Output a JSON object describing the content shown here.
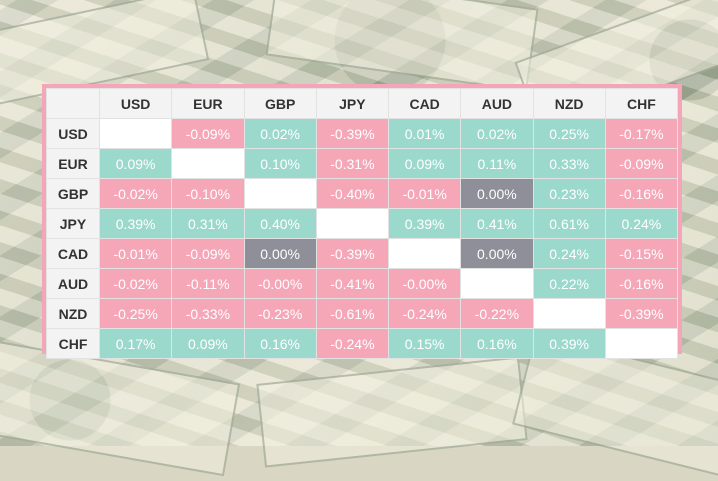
{
  "colors": {
    "positive": "#9ad9cc",
    "negative": "#f6a7b7",
    "zero": "#8f8f99",
    "frame": "#f4a5b7"
  },
  "table": {
    "columns": [
      "USD",
      "EUR",
      "GBP",
      "JPY",
      "CAD",
      "AUD",
      "NZD",
      "CHF"
    ],
    "rows": [
      {
        "label": "USD",
        "cells": [
          {
            "value": "",
            "type": "self"
          },
          {
            "value": "-0.09%",
            "type": "neg"
          },
          {
            "value": "0.02%",
            "type": "pos"
          },
          {
            "value": "-0.39%",
            "type": "neg"
          },
          {
            "value": "0.01%",
            "type": "pos"
          },
          {
            "value": "0.02%",
            "type": "pos"
          },
          {
            "value": "0.25%",
            "type": "pos"
          },
          {
            "value": "-0.17%",
            "type": "neg"
          }
        ]
      },
      {
        "label": "EUR",
        "cells": [
          {
            "value": "0.09%",
            "type": "pos"
          },
          {
            "value": "",
            "type": "self"
          },
          {
            "value": "0.10%",
            "type": "pos"
          },
          {
            "value": "-0.31%",
            "type": "neg"
          },
          {
            "value": "0.09%",
            "type": "pos"
          },
          {
            "value": "0.11%",
            "type": "pos"
          },
          {
            "value": "0.33%",
            "type": "pos"
          },
          {
            "value": "-0.09%",
            "type": "neg"
          }
        ]
      },
      {
        "label": "GBP",
        "cells": [
          {
            "value": "-0.02%",
            "type": "neg"
          },
          {
            "value": "-0.10%",
            "type": "neg"
          },
          {
            "value": "",
            "type": "self"
          },
          {
            "value": "-0.40%",
            "type": "neg"
          },
          {
            "value": "-0.01%",
            "type": "neg"
          },
          {
            "value": "0.00%",
            "type": "zero"
          },
          {
            "value": "0.23%",
            "type": "pos"
          },
          {
            "value": "-0.16%",
            "type": "neg"
          }
        ]
      },
      {
        "label": "JPY",
        "cells": [
          {
            "value": "0.39%",
            "type": "pos"
          },
          {
            "value": "0.31%",
            "type": "pos"
          },
          {
            "value": "0.40%",
            "type": "pos"
          },
          {
            "value": "",
            "type": "self"
          },
          {
            "value": "0.39%",
            "type": "pos"
          },
          {
            "value": "0.41%",
            "type": "pos"
          },
          {
            "value": "0.61%",
            "type": "pos"
          },
          {
            "value": "0.24%",
            "type": "pos"
          }
        ]
      },
      {
        "label": "CAD",
        "cells": [
          {
            "value": "-0.01%",
            "type": "neg"
          },
          {
            "value": "-0.09%",
            "type": "neg"
          },
          {
            "value": "0.00%",
            "type": "zero"
          },
          {
            "value": "-0.39%",
            "type": "neg"
          },
          {
            "value": "",
            "type": "self"
          },
          {
            "value": "0.00%",
            "type": "zero"
          },
          {
            "value": "0.24%",
            "type": "pos"
          },
          {
            "value": "-0.15%",
            "type": "neg"
          }
        ]
      },
      {
        "label": "AUD",
        "cells": [
          {
            "value": "-0.02%",
            "type": "neg"
          },
          {
            "value": "-0.11%",
            "type": "neg"
          },
          {
            "value": "-0.00%",
            "type": "neg"
          },
          {
            "value": "-0.41%",
            "type": "neg"
          },
          {
            "value": "-0.00%",
            "type": "neg"
          },
          {
            "value": "",
            "type": "self"
          },
          {
            "value": "0.22%",
            "type": "pos"
          },
          {
            "value": "-0.16%",
            "type": "neg"
          }
        ]
      },
      {
        "label": "NZD",
        "cells": [
          {
            "value": "-0.25%",
            "type": "neg"
          },
          {
            "value": "-0.33%",
            "type": "neg"
          },
          {
            "value": "-0.23%",
            "type": "neg"
          },
          {
            "value": "-0.61%",
            "type": "neg"
          },
          {
            "value": "-0.24%",
            "type": "neg"
          },
          {
            "value": "-0.22%",
            "type": "neg"
          },
          {
            "value": "",
            "type": "self"
          },
          {
            "value": "-0.39%",
            "type": "neg"
          }
        ]
      },
      {
        "label": "CHF",
        "cells": [
          {
            "value": "0.17%",
            "type": "pos"
          },
          {
            "value": "0.09%",
            "type": "pos"
          },
          {
            "value": "0.16%",
            "type": "pos"
          },
          {
            "value": "-0.24%",
            "type": "neg"
          },
          {
            "value": "0.15%",
            "type": "pos"
          },
          {
            "value": "0.16%",
            "type": "pos"
          },
          {
            "value": "0.39%",
            "type": "pos"
          },
          {
            "value": "",
            "type": "self"
          }
        ]
      }
    ]
  }
}
